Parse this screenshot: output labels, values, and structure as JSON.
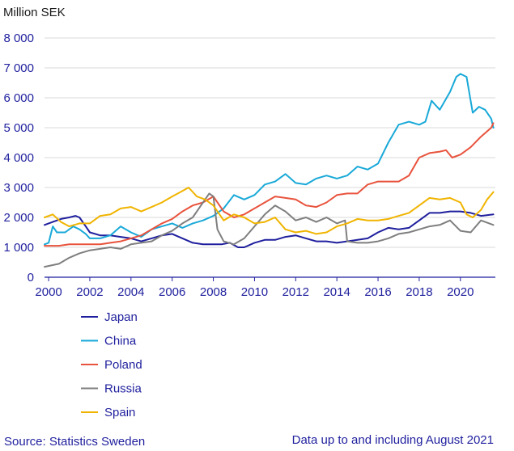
{
  "chart_data": {
    "type": "line",
    "title": "",
    "ylabel": "Million SEK",
    "xlabel": "",
    "ylim": [
      0,
      8000
    ],
    "xlim": [
      1999.8,
      2021.7
    ],
    "y_ticks": [
      0,
      1000,
      2000,
      3000,
      4000,
      5000,
      6000,
      7000,
      8000
    ],
    "y_tick_labels": [
      "0",
      "1 000",
      "2 000",
      "3 000",
      "4 000",
      "5 000",
      "6 000",
      "7 000",
      "8 000"
    ],
    "x_ticks": [
      2000,
      2002,
      2004,
      2006,
      2008,
      2010,
      2012,
      2014,
      2016,
      2018,
      2020
    ],
    "x_tick_labels": [
      "2000",
      "2002",
      "2004",
      "2006",
      "2008",
      "2010",
      "2012",
      "2014",
      "2016",
      "2018",
      "2020"
    ],
    "grid": "horizontal",
    "legend_position": "bottom-left",
    "source": "Source: Statistics Sweden",
    "note": "Data up to and including August 2021",
    "series": [
      {
        "name": "Japan",
        "color": "#1f1f9e",
        "x": [
          1999.8,
          2000.2,
          2000.6,
          2001.0,
          2001.3,
          2001.5,
          2001.8,
          2002.0,
          2002.5,
          2003.0,
          2003.5,
          2004.0,
          2004.5,
          2005.0,
          2005.5,
          2006.0,
          2006.5,
          2007.0,
          2007.5,
          2008.0,
          2008.4,
          2008.8,
          2009.2,
          2009.5,
          2010.0,
          2010.5,
          2011.0,
          2011.5,
          2012.0,
          2012.5,
          2013.0,
          2013.5,
          2014.0,
          2014.5,
          2015.0,
          2015.5,
          2016.0,
          2016.5,
          2017.0,
          2017.5,
          2018.0,
          2018.5,
          2019.0,
          2019.5,
          2020.0,
          2020.5,
          2021.0,
          2021.6
        ],
        "values": [
          1750,
          1850,
          1950,
          2000,
          2050,
          2000,
          1700,
          1500,
          1400,
          1400,
          1350,
          1300,
          1200,
          1300,
          1400,
          1450,
          1300,
          1150,
          1100,
          1100,
          1100,
          1150,
          1000,
          1000,
          1150,
          1250,
          1250,
          1350,
          1400,
          1300,
          1200,
          1200,
          1150,
          1200,
          1250,
          1300,
          1500,
          1650,
          1600,
          1650,
          1900,
          2150,
          2150,
          2200,
          2200,
          2150,
          2050,
          2100
        ]
      },
      {
        "name": "China",
        "color": "#19a9d8",
        "x": [
          1999.8,
          2000.0,
          2000.2,
          2000.4,
          2000.8,
          2001.2,
          2001.5,
          2001.8,
          2002.0,
          2002.5,
          2003.0,
          2003.5,
          2004.0,
          2004.5,
          2005.0,
          2005.5,
          2006.0,
          2006.5,
          2007.0,
          2007.5,
          2008.0,
          2008.5,
          2009.0,
          2009.5,
          2010.0,
          2010.5,
          2011.0,
          2011.5,
          2012.0,
          2012.5,
          2013.0,
          2013.5,
          2014.0,
          2014.5,
          2015.0,
          2015.5,
          2016.0,
          2016.5,
          2017.0,
          2017.5,
          2018.0,
          2018.3,
          2018.6,
          2019.0,
          2019.5,
          2019.8,
          2020.0,
          2020.3,
          2020.6,
          2020.9,
          2021.2,
          2021.5,
          2021.6
        ],
        "values": [
          1100,
          1150,
          1700,
          1500,
          1500,
          1700,
          1600,
          1450,
          1300,
          1300,
          1400,
          1700,
          1500,
          1350,
          1600,
          1700,
          1800,
          1650,
          1800,
          1900,
          2050,
          2300,
          2750,
          2600,
          2750,
          3100,
          3200,
          3450,
          3150,
          3100,
          3300,
          3400,
          3300,
          3400,
          3700,
          3600,
          3800,
          4500,
          5100,
          5200,
          5100,
          5200,
          5900,
          5600,
          6200,
          6700,
          6800,
          6700,
          5500,
          5700,
          5600,
          5300,
          5000
        ]
      },
      {
        "name": "Poland",
        "color": "#e8533d",
        "x": [
          1999.8,
          2000.5,
          2001.0,
          2001.5,
          2002.0,
          2002.5,
          2003.0,
          2003.5,
          2004.0,
          2004.5,
          2005.0,
          2005.5,
          2006.0,
          2006.5,
          2007.0,
          2007.5,
          2008.0,
          2008.5,
          2009.0,
          2009.5,
          2010.0,
          2010.5,
          2011.0,
          2011.5,
          2012.0,
          2012.5,
          2013.0,
          2013.5,
          2014.0,
          2014.5,
          2015.0,
          2015.5,
          2016.0,
          2016.5,
          2017.0,
          2017.5,
          2018.0,
          2018.5,
          2019.0,
          2019.3,
          2019.6,
          2020.0,
          2020.5,
          2021.0,
          2021.5,
          2021.6
        ],
        "values": [
          1050,
          1050,
          1100,
          1100,
          1100,
          1100,
          1150,
          1200,
          1300,
          1400,
          1600,
          1800,
          1950,
          2200,
          2400,
          2500,
          2700,
          2200,
          2000,
          2100,
          2300,
          2500,
          2700,
          2650,
          2600,
          2400,
          2350,
          2500,
          2750,
          2800,
          2800,
          3100,
          3200,
          3200,
          3200,
          3400,
          4000,
          4150,
          4200,
          4250,
          4000,
          4100,
          4350,
          4700,
          5000,
          5150
        ]
      },
      {
        "name": "Russia",
        "color": "#7f7f7f",
        "x": [
          1999.8,
          2000.5,
          2001.0,
          2001.5,
          2002.0,
          2002.5,
          2003.0,
          2003.5,
          2004.0,
          2004.5,
          2005.0,
          2005.5,
          2006.0,
          2006.5,
          2007.0,
          2007.5,
          2007.8,
          2008.0,
          2008.2,
          2008.5,
          2009.0,
          2009.5,
          2010.0,
          2010.5,
          2011.0,
          2011.5,
          2012.0,
          2012.5,
          2013.0,
          2013.5,
          2014.0,
          2014.4,
          2014.5,
          2015.0,
          2015.5,
          2016.0,
          2016.5,
          2017.0,
          2017.5,
          2018.0,
          2018.5,
          2019.0,
          2019.5,
          2020.0,
          2020.5,
          2021.0,
          2021.6
        ],
        "values": [
          350,
          450,
          650,
          800,
          900,
          950,
          1000,
          950,
          1100,
          1150,
          1200,
          1400,
          1550,
          1800,
          2000,
          2500,
          2800,
          2700,
          1600,
          1200,
          1100,
          1300,
          1700,
          2100,
          2400,
          2200,
          1900,
          2000,
          1850,
          2000,
          1800,
          1900,
          1200,
          1150,
          1150,
          1200,
          1300,
          1450,
          1500,
          1600,
          1700,
          1750,
          1900,
          1550,
          1500,
          1900,
          1750
        ]
      },
      {
        "name": "Spain",
        "color": "#f0b400",
        "x": [
          1999.8,
          2000.2,
          2000.6,
          2001.0,
          2001.5,
          2002.0,
          2002.5,
          2003.0,
          2003.5,
          2004.0,
          2004.5,
          2005.0,
          2005.5,
          2006.0,
          2006.4,
          2006.8,
          2007.2,
          2007.6,
          2008.0,
          2008.5,
          2009.0,
          2009.5,
          2010.0,
          2010.5,
          2011.0,
          2011.5,
          2012.0,
          2012.5,
          2013.0,
          2013.5,
          2014.0,
          2014.5,
          2015.0,
          2015.5,
          2016.0,
          2016.5,
          2017.0,
          2017.5,
          2018.0,
          2018.5,
          2019.0,
          2019.5,
          2020.0,
          2020.3,
          2020.6,
          2021.0,
          2021.3,
          2021.6
        ],
        "values": [
          2000,
          2100,
          1850,
          1700,
          1800,
          1800,
          2050,
          2100,
          2300,
          2350,
          2200,
          2350,
          2500,
          2700,
          2850,
          3000,
          2700,
          2600,
          2400,
          1900,
          2100,
          2000,
          1800,
          1850,
          2000,
          1600,
          1500,
          1550,
          1450,
          1500,
          1700,
          1800,
          1950,
          1900,
          1900,
          1950,
          2050,
          2150,
          2400,
          2650,
          2600,
          2650,
          2500,
          2100,
          2000,
          2250,
          2600,
          2850
        ]
      }
    ]
  }
}
